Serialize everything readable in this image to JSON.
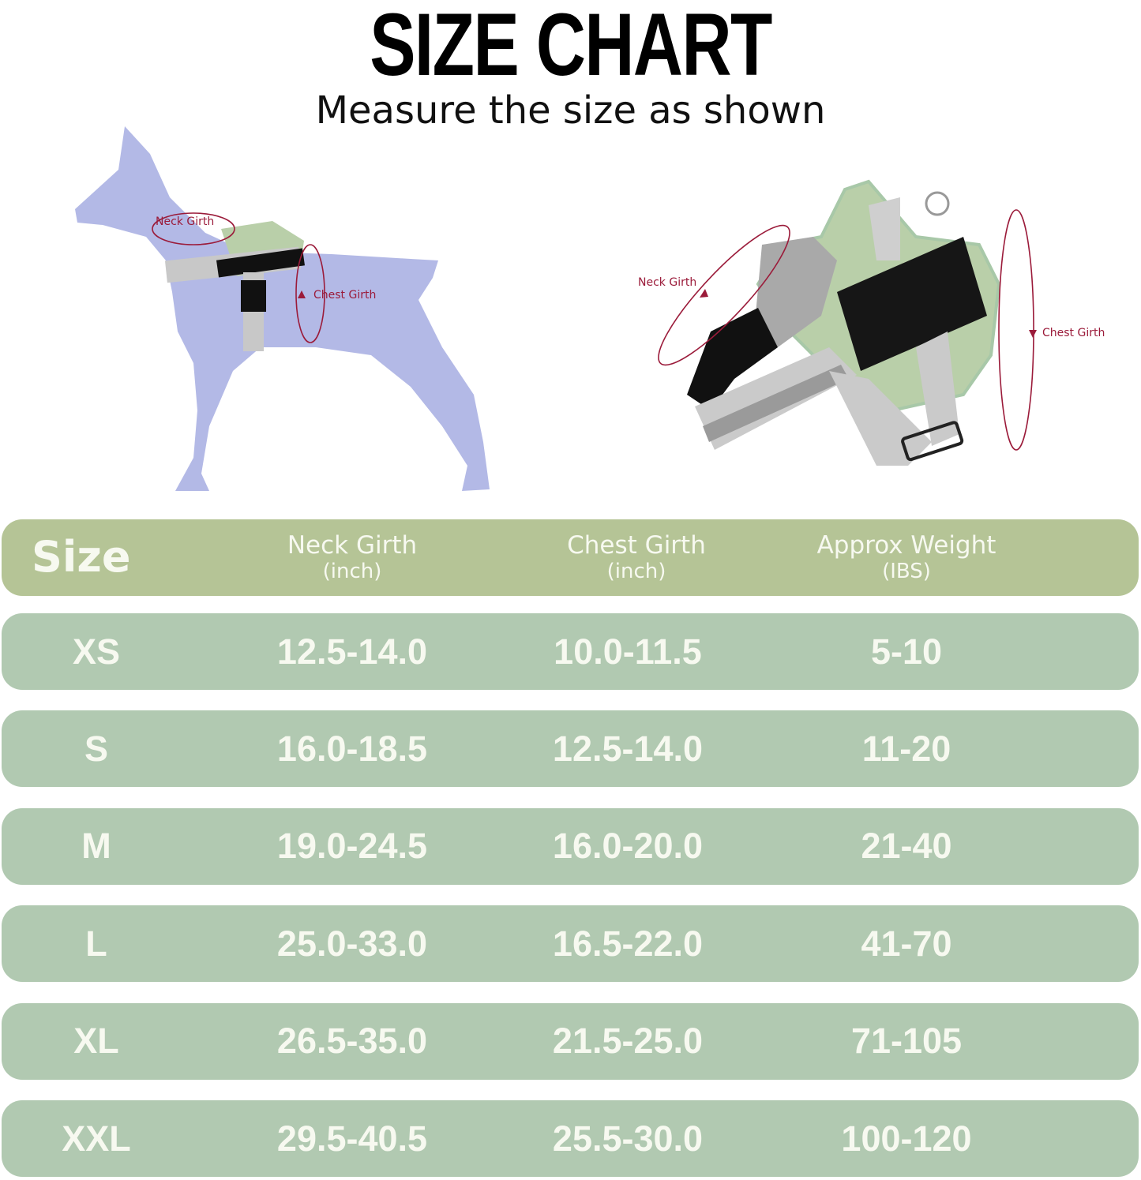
{
  "title": "SIZE CHART",
  "subtitle": "Measure the size as shown",
  "illustration": {
    "dog_labels": {
      "neck": "Neck Girth",
      "chest": "Chest Girth"
    },
    "harness_labels": {
      "neck": "Neck Girth",
      "chest": "Chest Girth"
    },
    "colors": {
      "dog": "#b3b9e6",
      "harness": "#b9cfa9",
      "measure_line": "#9b1b3a"
    }
  },
  "table": {
    "colors": {
      "header": "#b5c496",
      "row": "#b1c9b1",
      "text": "#f7f9f0"
    },
    "header": {
      "size": "Size",
      "neck": {
        "label": "Neck Girth",
        "unit": "(inch)"
      },
      "chest": {
        "label": "Chest Girth",
        "unit": "(inch)"
      },
      "weight": {
        "label": "Approx Weight",
        "unit": "(IBS)"
      }
    },
    "rows": [
      {
        "size": "XS",
        "neck": "12.5-14.0",
        "chest": "10.0-11.5",
        "weight": "5-10"
      },
      {
        "size": "S",
        "neck": "16.0-18.5",
        "chest": "12.5-14.0",
        "weight": "11-20"
      },
      {
        "size": "M",
        "neck": "19.0-24.5",
        "chest": "16.0-20.0",
        "weight": "21-40"
      },
      {
        "size": "L",
        "neck": "25.0-33.0",
        "chest": "16.5-22.0",
        "weight": "41-70"
      },
      {
        "size": "XL",
        "neck": "26.5-35.0",
        "chest": "21.5-25.0",
        "weight": "71-105"
      },
      {
        "size": "XXL",
        "neck": "29.5-40.5",
        "chest": "25.5-30.0",
        "weight": "100-120"
      }
    ]
  }
}
